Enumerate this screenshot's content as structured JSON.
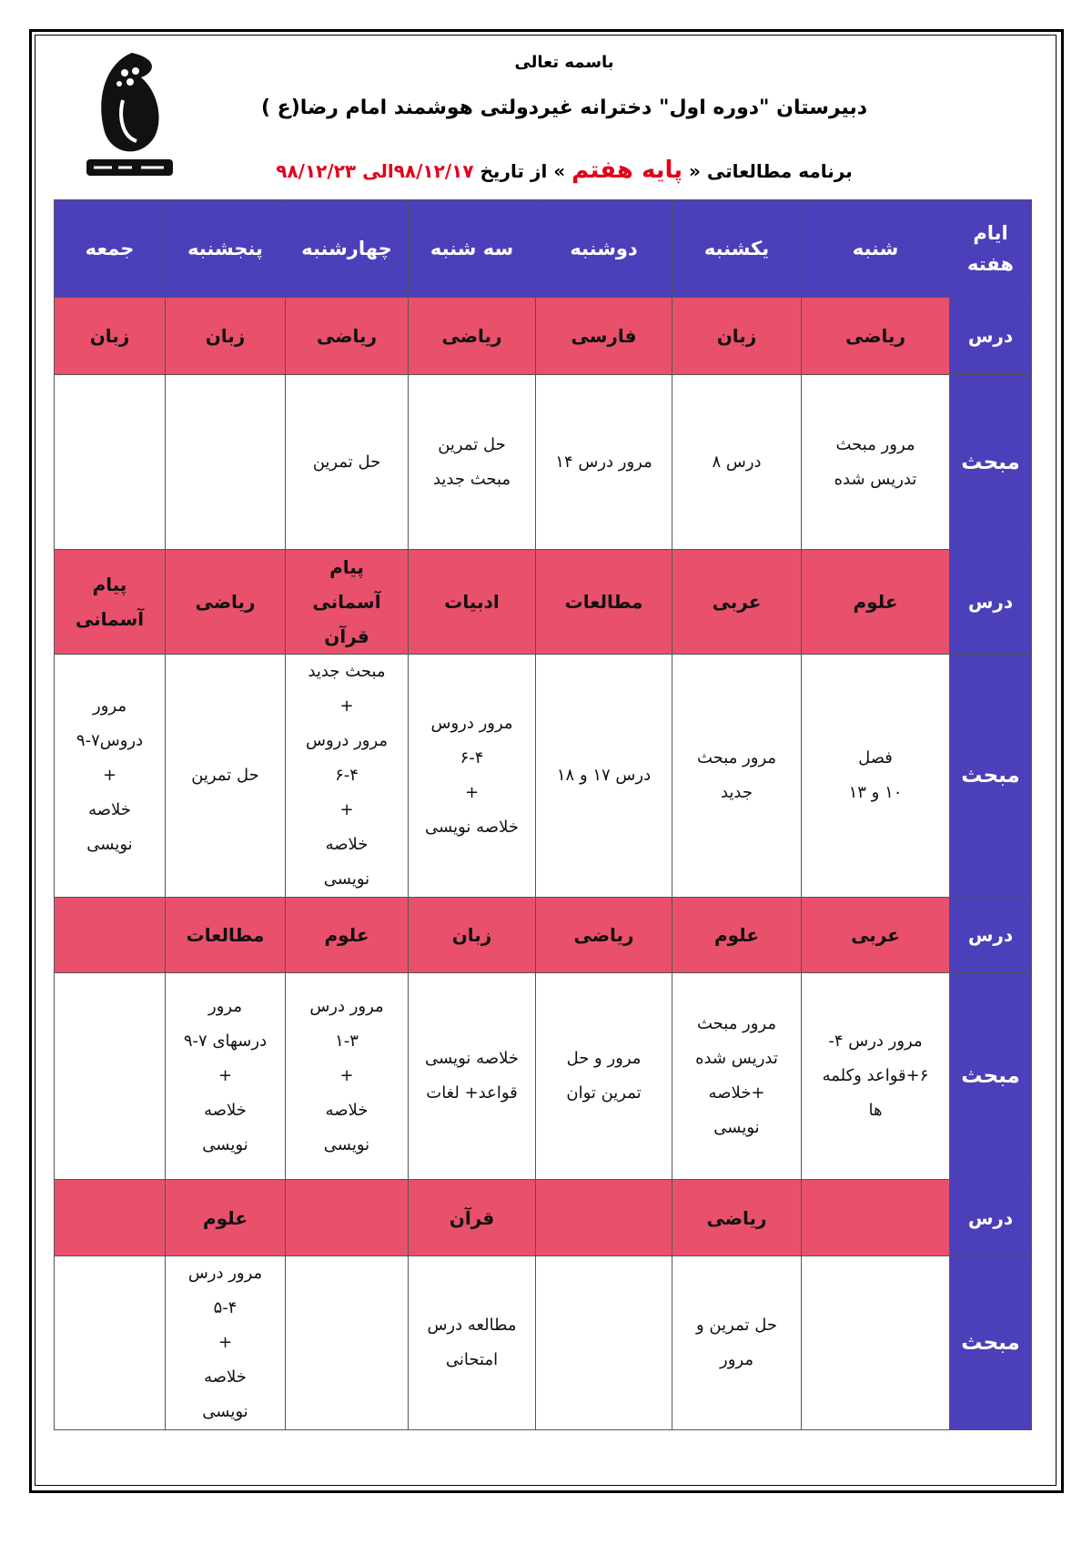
{
  "header": {
    "line1": "باسمه تعالی",
    "line2": "دبیرستان \"دوره اول\" دخترانه غیردولتی هوشمند امام رضا(ع )",
    "line3_prefix": "برنامه مطالعاتی «",
    "line3_grade": "پایه هفتم",
    "line3_mid": "» از تاریخ",
    "line3_from": "۹۸/۱۲/۱۷",
    "line3_to_word": "الی",
    "line3_to": "۹۸/۱۲/۲۳"
  },
  "logo": {
    "text": "امام رضا"
  },
  "colors": {
    "header_blue": "#4b3fba",
    "subject_pink": "#e9506c",
    "date_red": "#e2001a"
  },
  "table": {
    "corner": "ایام\nهفته",
    "days": [
      "شنبه",
      "یکشنبه",
      "دوشنبه",
      "سه شنبه",
      "چهارشنبه",
      "پنجشنبه",
      "جمعه"
    ],
    "subject_label": "درس",
    "topic_label": "مبحث",
    "blocks": [
      {
        "subjects": [
          "ریاضی",
          "زبان",
          "فارسی",
          "ریاضی",
          "ریاضی",
          "زبان",
          "زبان"
        ],
        "topics": [
          "مرور مبحث\nتدریس شده",
          "درس ۸",
          "مرور درس ۱۴",
          "حل تمرین\nمبحث جدید",
          "حل تمرین",
          "",
          ""
        ]
      },
      {
        "subjects": [
          "علوم",
          "عربی",
          "مطالعات",
          "ادبیات",
          "پیام\nآسمانی\nقرآن",
          "ریاضی",
          "پیام\nآسمانی"
        ],
        "topics": [
          "فصل\n۱۰ و ۱۳",
          "مرور مبحث\nجدید",
          "درس ۱۷ و ۱۸",
          "مرور دروس\n۶-۴\n+\nخلاصه نویسی",
          "مبحث جدید\n+\nمرور دروس\n۶-۴\n+\nخلاصه\nنویسی",
          "حل تمرین",
          "مرور\nدروس۷-۹\n+\nخلاصه\nنویسی"
        ]
      },
      {
        "subjects": [
          "عربی",
          "علوم",
          "ریاضی",
          "زبان",
          "علوم",
          "مطالعات",
          ""
        ],
        "topics": [
          "مرور درس ۴-\n۶+قواعد وکلمه\nها",
          "مرور مبحث\nتدریس شده\n+خلاصه\nنویسی",
          "مرور و حل\nتمرین توان",
          "خلاصه نویسی\nقواعد+ لغات",
          "مرور درس\n۱-۳\n+\nخلاصه\nنویسی",
          "مرور\nدرسهای ۷-۹\n+\nخلاصه\nنویسی",
          ""
        ]
      },
      {
        "subjects": [
          "",
          "ریاضی",
          "",
          "قرآن",
          "",
          "علوم",
          ""
        ],
        "topics": [
          "",
          "حل تمرین و\nمرور",
          "",
          "مطالعه درس\nامتحانی",
          "",
          "مرور درس\n۵-۴\n+\nخلاصه\nنویسی",
          ""
        ]
      }
    ]
  }
}
